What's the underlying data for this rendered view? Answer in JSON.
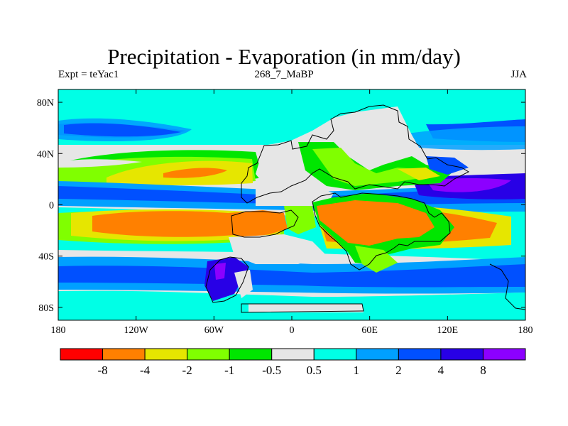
{
  "title": "Precipitation - Evaporation (in mm/day)",
  "left_label": "Expt = teYac1",
  "center_label": "268_7_MaBP",
  "right_label": "JJA",
  "map": {
    "lon_range": [
      -180,
      180
    ],
    "lat_range": [
      -90,
      90
    ],
    "x_ticks": [
      {
        "value": -180,
        "label": "180"
      },
      {
        "value": -120,
        "label": "120W"
      },
      {
        "value": -60,
        "label": "60W"
      },
      {
        "value": 0,
        "label": "0"
      },
      {
        "value": 60,
        "label": "60E"
      },
      {
        "value": 120,
        "label": "120E"
      },
      {
        "value": 180,
        "label": "180"
      }
    ],
    "y_ticks": [
      {
        "value": 80,
        "label": "80N"
      },
      {
        "value": 40,
        "label": "40N"
      },
      {
        "value": 0,
        "label": "0"
      },
      {
        "value": -40,
        "label": "40S"
      },
      {
        "value": -80,
        "label": "80S"
      }
    ],
    "background_color": "#e6e6e6"
  },
  "colorbar": {
    "colors": [
      "#ff0000",
      "#ff8000",
      "#e6e600",
      "#80ff00",
      "#00e600",
      "#e6e6e6",
      "#00ffe6",
      "#00a0ff",
      "#0050ff",
      "#2800e6",
      "#8c00ff"
    ],
    "labels": [
      "-8",
      "-4",
      "-2",
      "-1",
      "-0.5",
      "0.5",
      "1",
      "2",
      "4",
      "8"
    ]
  }
}
